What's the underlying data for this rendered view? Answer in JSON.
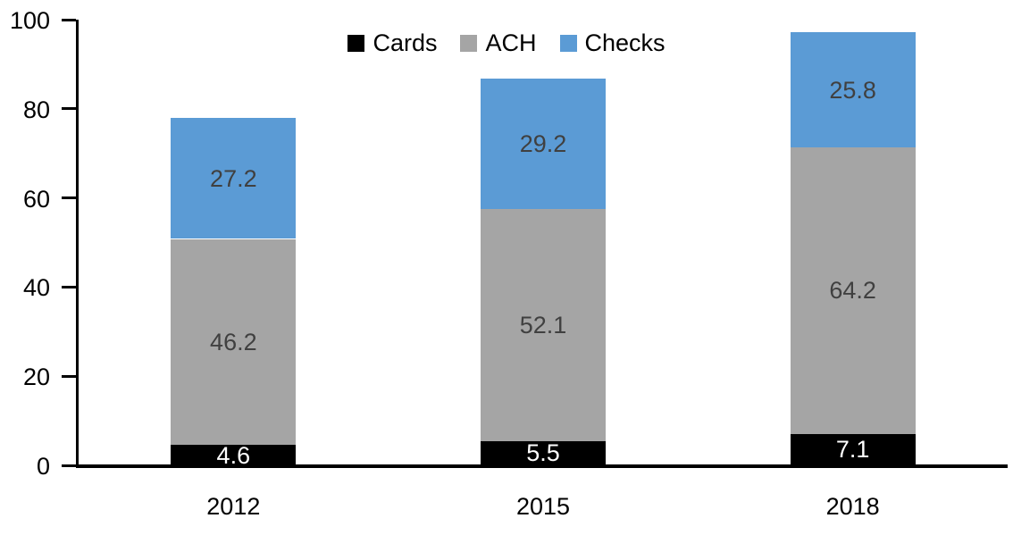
{
  "chart_data": {
    "type": "bar",
    "stacked": true,
    "title": "",
    "categories": [
      "2012",
      "2015",
      "2018"
    ],
    "series": [
      {
        "name": "Cards",
        "color": "#000000",
        "label_color": "#ffffff",
        "values": [
          4.6,
          5.5,
          7.1
        ]
      },
      {
        "name": "ACH",
        "color": "#a5a5a5",
        "label_color": "#404040",
        "values": [
          46.2,
          52.1,
          64.2
        ]
      },
      {
        "name": "Checks",
        "color": "#5b9bd5",
        "label_color": "#404040",
        "values": [
          27.2,
          29.2,
          25.8
        ]
      }
    ],
    "totals": [
      78.0,
      86.8,
      97.1
    ],
    "xlabel": "",
    "ylabel": "",
    "ylim": [
      0,
      100
    ],
    "yticks": [
      0,
      20,
      40,
      60,
      80,
      100
    ],
    "grid": false,
    "data_labels": true,
    "legend": {
      "position": "top-center",
      "entries": [
        "Cards",
        "ACH",
        "Checks"
      ]
    },
    "axis_color": "#000000",
    "background": "#ffffff"
  }
}
